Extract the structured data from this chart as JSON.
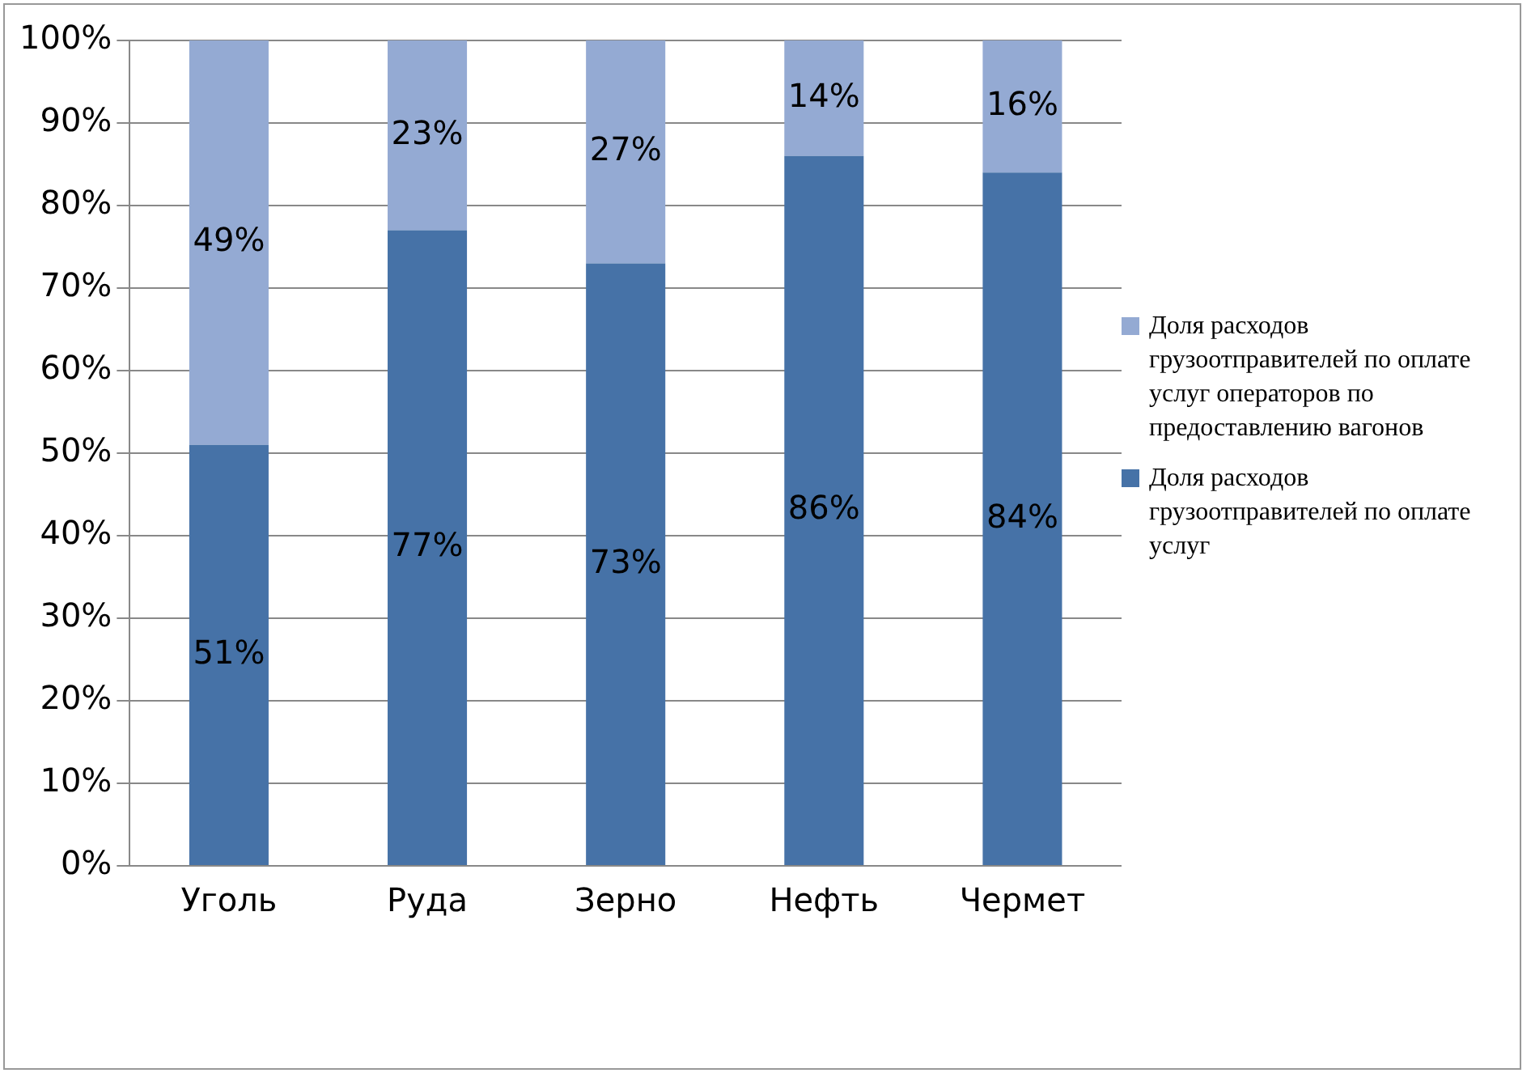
{
  "chart_data": {
    "type": "bar",
    "stacked": true,
    "categories": [
      "Уголь",
      "Руда",
      "Зерно",
      "Нефть",
      "Чермет"
    ],
    "series": [
      {
        "name": "Доля расходов грузоотправителей по оплате услуг",
        "color": "#4672a7",
        "values": [
          51,
          77,
          73,
          86,
          84
        ],
        "value_labels": [
          "51%",
          "77%",
          "73%",
          "86%",
          "84%"
        ]
      },
      {
        "name": "Доля расходов грузоотправителей по оплате услуг операторов по предоставлению вагонов",
        "color": "#94aad3",
        "values": [
          49,
          23,
          27,
          14,
          16
        ],
        "value_labels": [
          "49%",
          "23%",
          "27%",
          "14%",
          "16%"
        ]
      }
    ],
    "ylim": [
      0,
      100
    ],
    "yticks": [
      {
        "value": 0,
        "label": "0%"
      },
      {
        "value": 10,
        "label": "10%"
      },
      {
        "value": 20,
        "label": "20%"
      },
      {
        "value": 30,
        "label": "30%"
      },
      {
        "value": 40,
        "label": "40%"
      },
      {
        "value": 50,
        "label": "50%"
      },
      {
        "value": 60,
        "label": "60%"
      },
      {
        "value": 70,
        "label": "70%"
      },
      {
        "value": 80,
        "label": "80%"
      },
      {
        "value": 90,
        "label": "90%"
      },
      {
        "value": 100,
        "label": "100%"
      }
    ],
    "grid": "y",
    "legend": "right"
  }
}
